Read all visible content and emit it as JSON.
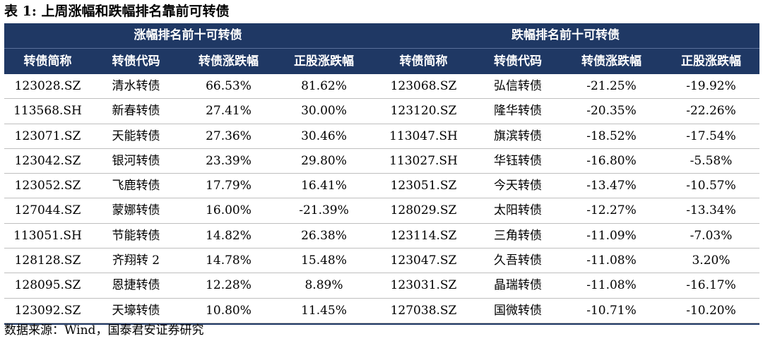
{
  "title": "表 1: 上周涨幅和跌幅排名靠前可转债",
  "groups": {
    "left": "涨幅排名前十可转债",
    "right": "跌幅排名前十可转债"
  },
  "columns": [
    "转债简称",
    "转债代码",
    "转债涨跌幅",
    "正股涨跌幅",
    "转债简称",
    "转债代码",
    "转债涨跌幅",
    "正股涨跌幅"
  ],
  "rows": [
    [
      "123028.SZ",
      "清水转债",
      "66.53%",
      "81.62%",
      "123068.SZ",
      "弘信转债",
      "-21.25%",
      "-19.92%"
    ],
    [
      "113568.SH",
      "新春转债",
      "27.41%",
      "30.00%",
      "123120.SZ",
      "隆华转债",
      "-20.35%",
      "-22.26%"
    ],
    [
      "123071.SZ",
      "天能转债",
      "27.36%",
      "30.46%",
      "113047.SH",
      "旗滨转债",
      "-18.52%",
      "-17.54%"
    ],
    [
      "123042.SZ",
      "银河转债",
      "23.39%",
      "29.80%",
      "113027.SH",
      "华钰转债",
      "-16.80%",
      "-5.58%"
    ],
    [
      "123052.SZ",
      "飞鹿转债",
      "17.79%",
      "16.41%",
      "123051.SZ",
      "今天转债",
      "-13.47%",
      "-10.57%"
    ],
    [
      "127044.SZ",
      "蒙娜转债",
      "16.00%",
      "-21.39%",
      "128029.SZ",
      "太阳转债",
      "-12.27%",
      "-13.34%"
    ],
    [
      "113051.SH",
      "节能转债",
      "14.82%",
      "26.38%",
      "123114.SZ",
      "三角转债",
      "-11.09%",
      "-7.03%"
    ],
    [
      "128128.SZ",
      "齐翔转 2",
      "14.78%",
      "15.48%",
      "123047.SZ",
      "久吾转债",
      "-11.08%",
      "3.20%"
    ],
    [
      "128095.SZ",
      "恩捷转债",
      "12.28%",
      "8.89%",
      "123031.SZ",
      "晶瑞转债",
      "-11.08%",
      "-16.17%"
    ],
    [
      "123092.SZ",
      "天壕转债",
      "10.80%",
      "11.45%",
      "127038.SZ",
      "国微转债",
      "-10.71%",
      "-10.20%"
    ]
  ],
  "source": "数据来源：Wind，国泰君安证券研究",
  "colors": {
    "header_bg": "#1f3864",
    "header_text": "#ffffff",
    "row_line": "#bfbfbf"
  }
}
